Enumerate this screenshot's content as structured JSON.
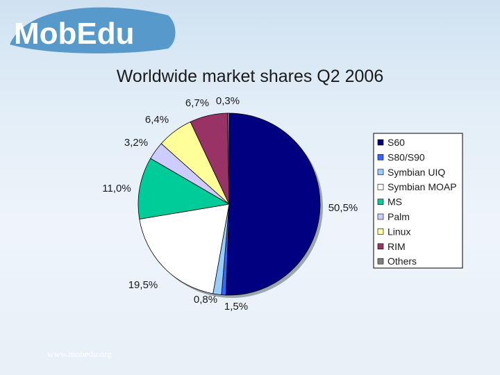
{
  "logo": {
    "text": "MobEdu"
  },
  "footer": {
    "url": "www.mobedu.org"
  },
  "chart_data": {
    "type": "pie",
    "title": "Worldwide market shares Q2 2006",
    "categories": [
      "S60",
      "S80/S90",
      "Symbian UIQ",
      "Symbian MOAP",
      "MS",
      "Palm",
      "Linux",
      "RIM",
      "Others"
    ],
    "values": [
      50.5,
      0.8,
      1.5,
      19.5,
      11.0,
      3.2,
      6.4,
      6.7,
      0.3
    ],
    "labels": [
      "50,5%",
      "0,8%",
      "1,5%",
      "19,5%",
      "11,0%",
      "3,2%",
      "6,4%",
      "6,7%",
      "0,3%"
    ],
    "colors": [
      "#000080",
      "#3366ff",
      "#99ccff",
      "#ffffff",
      "#00cc99",
      "#ccccff",
      "#ffff99",
      "#993366",
      "#808080"
    ],
    "legend_position": "right",
    "start_angle_deg": 0,
    "direction": "clockwise"
  }
}
